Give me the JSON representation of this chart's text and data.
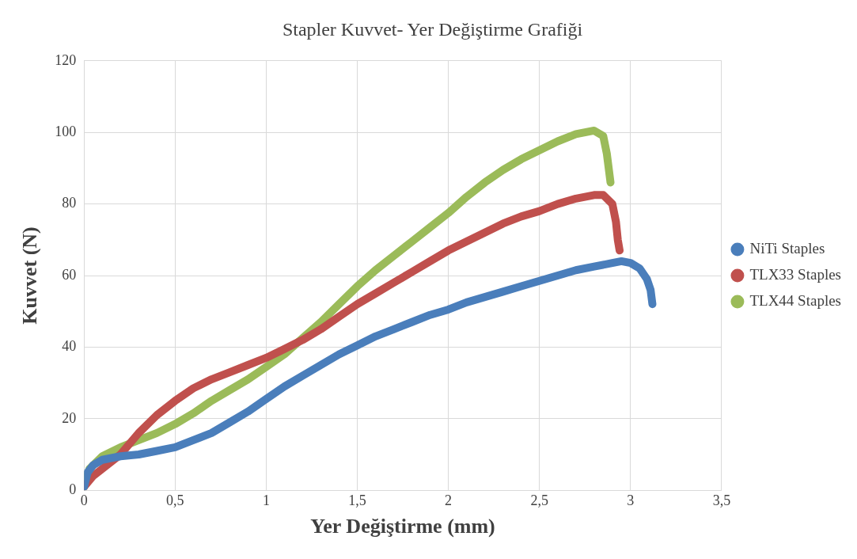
{
  "chart_data": {
    "type": "line",
    "title": "Stapler Kuvvet- Yer Değiştirme Grafiği",
    "xlabel": "Yer Değiştirme (mm)",
    "ylabel": "Kuvvet (N)",
    "xlim": [
      0,
      3.5
    ],
    "xticks": [
      0,
      {
        "value": 0.5,
        "label": "0,5"
      },
      1,
      {
        "value": 1.5,
        "label": "1,5"
      },
      2,
      {
        "value": 2.5,
        "label": "2,5"
      },
      3,
      {
        "value": 3.5,
        "label": "3,5"
      }
    ],
    "ylim": [
      0,
      120
    ],
    "yticks": [
      0,
      20,
      40,
      60,
      80,
      100,
      120
    ],
    "grid": true,
    "legend": "right",
    "marker": "none",
    "series": [
      {
        "name": "NiTi Staples",
        "color": "#4a7ebb",
        "x": [
          0,
          0.02,
          0.05,
          0.1,
          0.2,
          0.3,
          0.4,
          0.5,
          0.6,
          0.7,
          0.8,
          0.9,
          1,
          1.1,
          1.2,
          1.3,
          1.4,
          1.5,
          1.6,
          1.7,
          1.8,
          1.9,
          2,
          2.1,
          2.2,
          2.3,
          2.4,
          2.5,
          2.6,
          2.7,
          2.8,
          2.9,
          2.95,
          3,
          3.05,
          3.09,
          3.11,
          3.12
        ],
        "values": [
          1,
          5,
          7,
          8.5,
          9.5,
          10,
          11,
          12,
          14,
          16,
          19,
          22,
          25.5,
          29,
          32,
          35,
          38,
          40.5,
          43,
          45,
          47,
          49,
          50.5,
          52.5,
          54,
          55.5,
          57,
          58.5,
          60,
          61.5,
          62.5,
          63.5,
          64,
          63.5,
          62,
          59,
          56,
          52
        ]
      },
      {
        "name": "TLX33 Staples",
        "color": "#c0504d",
        "x": [
          0,
          0.05,
          0.1,
          0.2,
          0.3,
          0.4,
          0.5,
          0.6,
          0.7,
          0.8,
          0.9,
          1,
          1.1,
          1.2,
          1.3,
          1.4,
          1.5,
          1.6,
          1.7,
          1.8,
          1.9,
          2,
          2.1,
          2.2,
          2.3,
          2.4,
          2.5,
          2.6,
          2.7,
          2.8,
          2.85,
          2.9,
          2.92,
          2.93,
          2.94
        ],
        "values": [
          1,
          4,
          6,
          10,
          16,
          21,
          25,
          28.5,
          31,
          33,
          35,
          37,
          39.5,
          42,
          45,
          48.5,
          52,
          55,
          58,
          61,
          64,
          67,
          69.5,
          72,
          74.5,
          76.5,
          78,
          80,
          81.5,
          82.5,
          82.5,
          80,
          75,
          70,
          67
        ]
      },
      {
        "name": "TLX44 Staples",
        "color": "#9bbb59",
        "x": [
          0,
          0.03,
          0.1,
          0.2,
          0.3,
          0.4,
          0.5,
          0.6,
          0.7,
          0.8,
          0.9,
          1,
          1.1,
          1.2,
          1.3,
          1.4,
          1.5,
          1.6,
          1.7,
          1.8,
          1.9,
          2,
          2.1,
          2.2,
          2.3,
          2.4,
          2.5,
          2.6,
          2.7,
          2.8,
          2.85,
          2.87,
          2.88,
          2.89
        ],
        "values": [
          1,
          6,
          9.5,
          12,
          14,
          16,
          18.5,
          21.5,
          25,
          28,
          31,
          34.5,
          38,
          42.5,
          47,
          52,
          57,
          61.5,
          65.5,
          69.5,
          73.5,
          77.5,
          82,
          86,
          89.5,
          92.5,
          95,
          97.5,
          99.5,
          100.5,
          99,
          94,
          90,
          86
        ]
      }
    ]
  }
}
